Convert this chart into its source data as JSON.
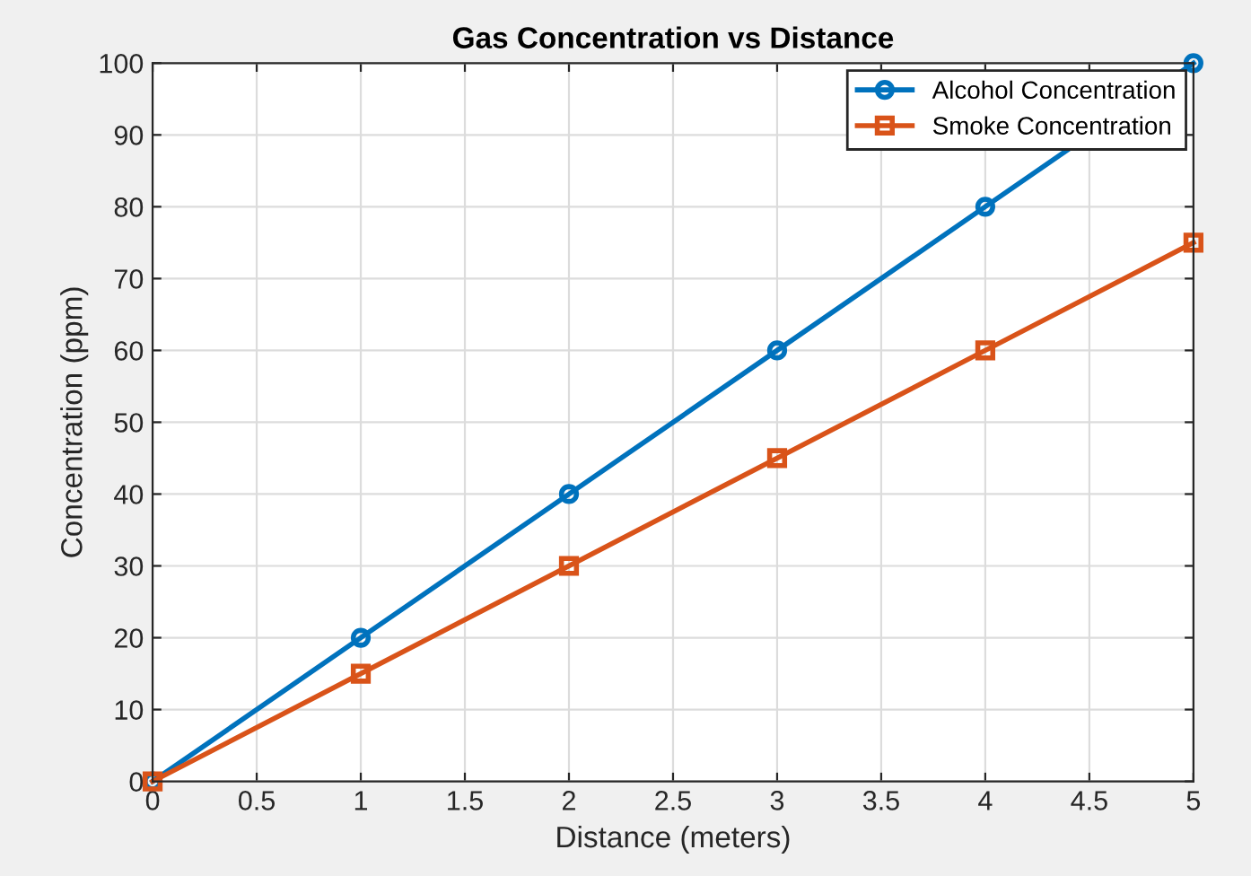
{
  "chart_data": {
    "type": "line",
    "title": "Gas Concentration vs Distance",
    "xlabel": "Distance (meters)",
    "ylabel": "Concentration (ppm)",
    "x": [
      0,
      1,
      2,
      3,
      4,
      5
    ],
    "series": [
      {
        "name": "Alcohol Concentration",
        "color": "#0072bd",
        "marker": "circle",
        "values": [
          0,
          20,
          40,
          60,
          80,
          100
        ]
      },
      {
        "name": "Smoke Concentration",
        "color": "#d95319",
        "marker": "square",
        "values": [
          0,
          15,
          30,
          45,
          60,
          75
        ]
      }
    ],
    "xlim": [
      0,
      5
    ],
    "xticks": [
      0,
      0.5,
      1,
      1.5,
      2,
      2.5,
      3,
      3.5,
      4,
      4.5,
      5
    ],
    "ylim": [
      0,
      100
    ],
    "yticks": [
      0,
      10,
      20,
      30,
      40,
      50,
      60,
      70,
      80,
      90,
      100
    ],
    "grid": true,
    "legend": "top right",
    "line_style": "solid"
  }
}
